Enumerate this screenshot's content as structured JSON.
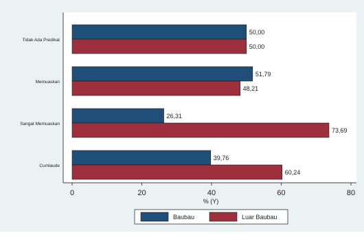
{
  "chart_data": {
    "type": "bar",
    "orientation": "horizontal",
    "categories": [
      "Tidak Ada Predikat",
      "Memuaskan",
      "Sangat Memuaskan",
      "Cumlaude"
    ],
    "series": [
      {
        "name": "Baubau",
        "values": [
          50.0,
          51.79,
          26.31,
          39.76
        ],
        "labels": [
          "50,00",
          "51,79",
          "26,31",
          "39,76"
        ],
        "color": "#1f4e79"
      },
      {
        "name": "Luar Baubau",
        "values": [
          50.0,
          48.21,
          73.69,
          60.24
        ],
        "labels": [
          "50,00",
          "48,21",
          "73,69",
          "60,24"
        ],
        "color": "#9e2f3c"
      }
    ],
    "title": "",
    "xlabel": "% (Y)",
    "ylabel": "",
    "xlim": [
      0,
      80
    ],
    "xticks": [
      "0",
      "20",
      "40",
      "60",
      "80"
    ],
    "grid": false,
    "legend_position": "bottom"
  },
  "colors": {
    "background": "#eaf2f3",
    "plot_background": "#ffffff"
  }
}
